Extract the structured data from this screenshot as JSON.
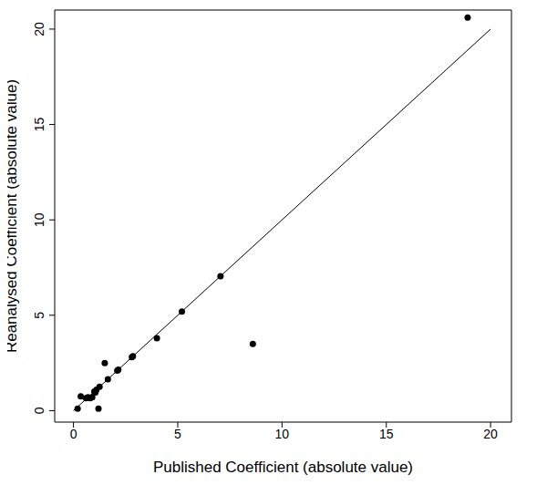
{
  "chart_data": {
    "type": "scatter",
    "x_label": "Published Coefficient (absolute value)",
    "y_label": "Reanalysed Coefficient (absolute value)",
    "xlim": [
      -0.9,
      21.0
    ],
    "ylim": [
      -0.6,
      21.0
    ],
    "xticks": [
      0,
      5,
      10,
      15,
      20
    ],
    "yticks": [
      0,
      5,
      10,
      15,
      20
    ],
    "grid": false,
    "series": [
      {
        "type": "scatter",
        "color": "#000000",
        "marker": "circle",
        "x": [
          18.9,
          8.6,
          7.05,
          5.2,
          4.0,
          2.8,
          2.85,
          2.1,
          2.15,
          1.65,
          1.5,
          1.25,
          1.1,
          1.0,
          0.9,
          1.05,
          1.2,
          0.7,
          0.6,
          0.8,
          0.35,
          0.2
        ],
        "values": [
          20.6,
          3.5,
          7.05,
          5.2,
          3.8,
          2.8,
          2.85,
          2.1,
          2.15,
          1.65,
          2.5,
          1.25,
          1.1,
          1.0,
          0.7,
          0.95,
          0.1,
          0.7,
          0.65,
          0.65,
          0.75,
          0.1
        ]
      },
      {
        "type": "line",
        "color": "#000000",
        "line_style": "solid",
        "x": [
          0,
          20
        ],
        "values": [
          0,
          20
        ]
      }
    ]
  }
}
